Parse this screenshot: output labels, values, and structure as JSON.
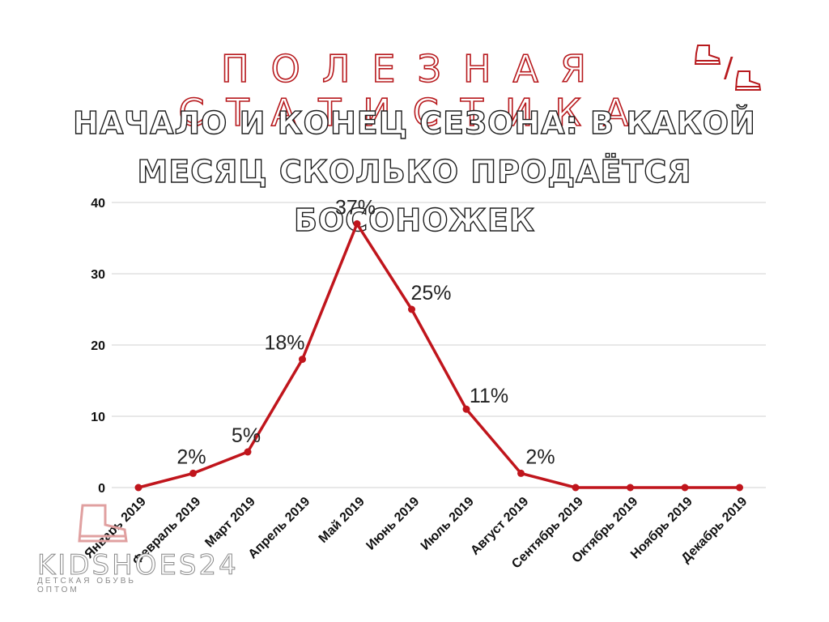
{
  "header": {
    "heading": "ПОЛЕЗНАЯ СТАТИСТИКА",
    "title": "НАЧАЛО И КОНЕЦ СЕЗОНА: В КАКОЙ МЕСЯЦ СКОЛЬКО ПРОДАЁТСЯ БОСОНОЖЕК"
  },
  "logo": {
    "name": "KIDSHOES24",
    "tagline": "ДЕТСКАЯ ОБУВЬ ОПТОМ"
  },
  "colors": {
    "line": "#c0151c",
    "heading": "#b7191d",
    "grid": "#d0d0d0"
  },
  "icons": [
    "boot-icon",
    "boot-icon",
    "boot-icon"
  ],
  "chart_data": {
    "type": "line",
    "categories": [
      "Январь 2019",
      "Февраль 2019",
      "Март 2019",
      "Апрель 2019",
      "Май 2019",
      "Июнь 2019",
      "Июль 2019",
      "Август 2019",
      "Сентябрь 2019",
      "Октябрь 2019",
      "Ноябрь 2019",
      "Декабрь 2019"
    ],
    "values": [
      0,
      2,
      5,
      18,
      37,
      25,
      11,
      2,
      0,
      0,
      0,
      0
    ],
    "data_labels": [
      "",
      "2%",
      "5%",
      "18%",
      "37%",
      "25%",
      "11%",
      "2%",
      "",
      "",
      "",
      ""
    ],
    "yticks": [
      "0",
      "10",
      "20",
      "30",
      "40"
    ],
    "ylim": [
      0,
      40
    ],
    "grid": true,
    "legend": "none"
  }
}
